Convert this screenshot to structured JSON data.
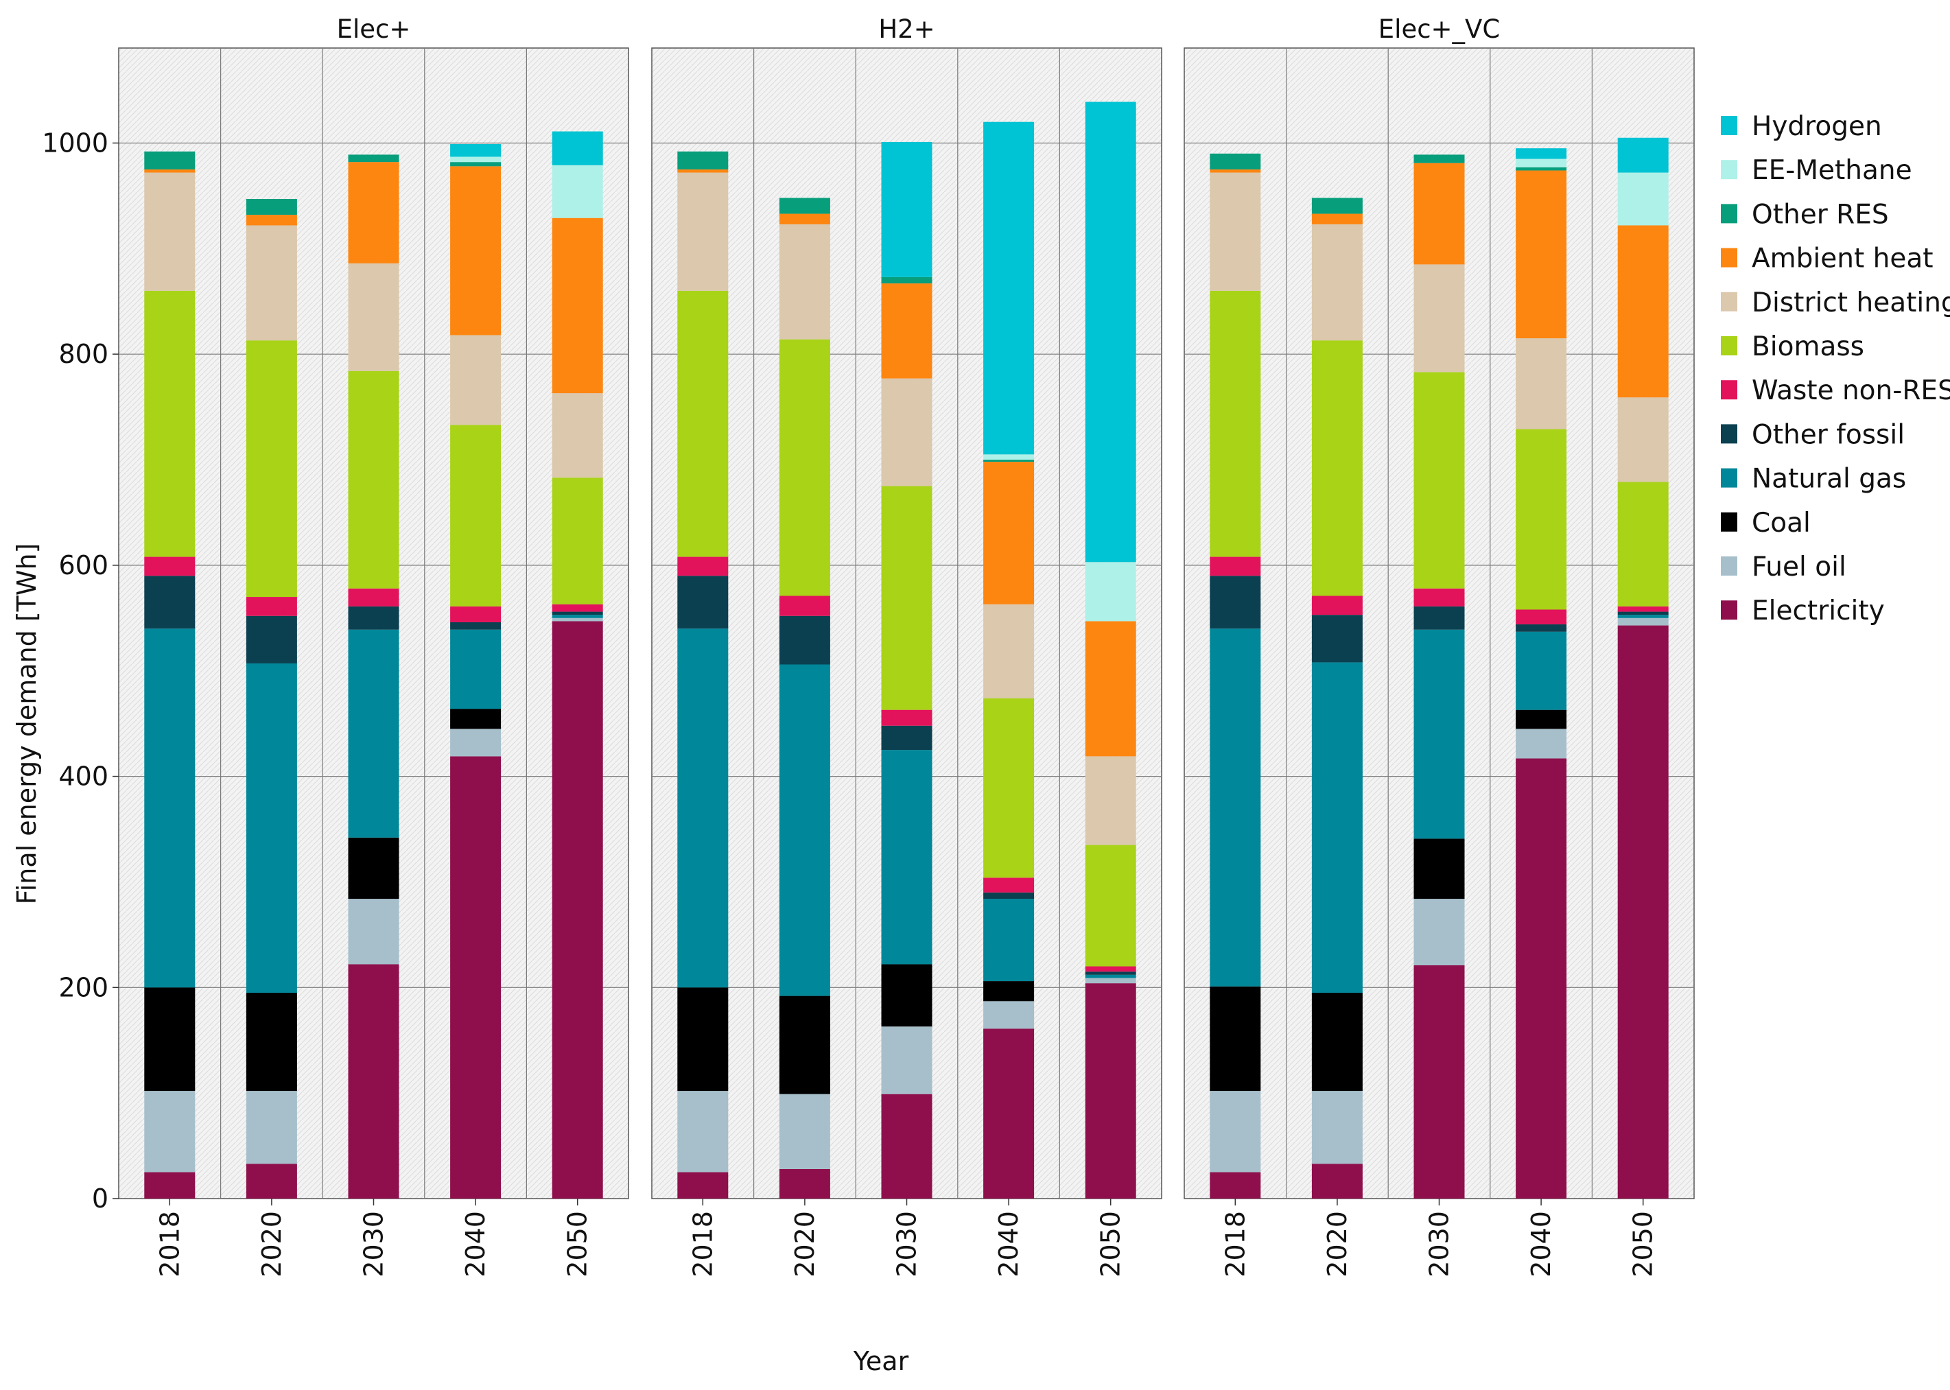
{
  "chart_data": {
    "type": "bar",
    "stacked": true,
    "xlabel": "Year",
    "ylabel": "Final energy demand [TWh]",
    "ylim": [
      0,
      1090
    ],
    "yticks": [
      0,
      200,
      400,
      600,
      800,
      1000
    ],
    "grid": true,
    "legend_position": "right",
    "categories": [
      "2018",
      "2020",
      "2030",
      "2040",
      "2050"
    ],
    "colors": {
      "Electricity": "#8e0f4c",
      "Fuel oil": "#a6bfcb",
      "Coal": "#000000",
      "Natural gas": "#00879a",
      "Other fossil": "#0b4050",
      "Waste non-RES": "#e2135b",
      "Biomass": "#a8d317",
      "District heating": "#dbc8ad",
      "Ambient heat": "#fd8611",
      "Other RES": "#079e7c",
      "EE-Methane": "#aef1e8",
      "Hydrogen": "#00c3d3"
    },
    "legend": [
      "Hydrogen",
      "EE-Methane",
      "Other RES",
      "Ambient heat",
      "District heating",
      "Biomass",
      "Waste non-RES",
      "Other fossil",
      "Natural gas",
      "Coal",
      "Fuel oil",
      "Electricity"
    ],
    "panels": [
      {
        "title": "Elec+",
        "series": [
          {
            "name": "Electricity",
            "values": [
              25,
              33,
              222,
              419,
              547
            ]
          },
          {
            "name": "Fuel oil",
            "values": [
              77,
              69,
              62,
              26,
              3
            ]
          },
          {
            "name": "Coal",
            "values": [
              98,
              93,
              58,
              19,
              0
            ]
          },
          {
            "name": "Natural gas",
            "values": [
              340,
              312,
              197,
              75,
              3
            ]
          },
          {
            "name": "Other fossil",
            "values": [
              50,
              45,
              22,
              7,
              3
            ]
          },
          {
            "name": "Waste non-RES",
            "values": [
              18,
              18,
              17,
              15,
              7
            ]
          },
          {
            "name": "Biomass",
            "values": [
              252,
              243,
              206,
              172,
              120
            ]
          },
          {
            "name": "District heating",
            "values": [
              112,
              109,
              102,
              85,
              80
            ]
          },
          {
            "name": "Ambient heat",
            "values": [
              3,
              10,
              96,
              160,
              166
            ]
          },
          {
            "name": "Other RES",
            "values": [
              17,
              15,
              7,
              4,
              0
            ]
          },
          {
            "name": "EE-Methane",
            "values": [
              0,
              0,
              0,
              5,
              50
            ]
          },
          {
            "name": "Hydrogen",
            "values": [
              0,
              0,
              0,
              12,
              32
            ]
          }
        ]
      },
      {
        "title": "H2+",
        "series": [
          {
            "name": "Electricity",
            "values": [
              25,
              28,
              99,
              161,
              204
            ]
          },
          {
            "name": "Fuel oil",
            "values": [
              77,
              71,
              64,
              26,
              5
            ]
          },
          {
            "name": "Coal",
            "values": [
              98,
              93,
              59,
              19,
              0
            ]
          },
          {
            "name": "Natural gas",
            "values": [
              340,
              314,
              203,
              78,
              3
            ]
          },
          {
            "name": "Other fossil",
            "values": [
              50,
              46,
              23,
              6,
              3
            ]
          },
          {
            "name": "Waste non-RES",
            "values": [
              18,
              19,
              15,
              14,
              5
            ]
          },
          {
            "name": "Biomass",
            "values": [
              252,
              243,
              212,
              170,
              115
            ]
          },
          {
            "name": "District heating",
            "values": [
              112,
              109,
              102,
              89,
              84
            ]
          },
          {
            "name": "Ambient heat",
            "values": [
              3,
              10,
              90,
              135,
              128
            ]
          },
          {
            "name": "Other RES",
            "values": [
              17,
              15,
              6,
              2,
              0
            ]
          },
          {
            "name": "EE-Methane",
            "values": [
              0,
              0,
              0,
              5,
              56
            ]
          },
          {
            "name": "Hydrogen",
            "values": [
              0,
              0,
              128,
              315,
              436
            ]
          }
        ]
      },
      {
        "title": "Elec+_VC",
        "series": [
          {
            "name": "Electricity",
            "values": [
              25,
              33,
              221,
              417,
              543
            ]
          },
          {
            "name": "Fuel oil",
            "values": [
              77,
              69,
              63,
              28,
              7
            ]
          },
          {
            "name": "Coal",
            "values": [
              99,
              93,
              57,
              18,
              0
            ]
          },
          {
            "name": "Natural gas",
            "values": [
              339,
              313,
              198,
              74,
              3
            ]
          },
          {
            "name": "Other fossil",
            "values": [
              50,
              45,
              22,
              7,
              3
            ]
          },
          {
            "name": "Waste non-RES",
            "values": [
              18,
              18,
              17,
              14,
              5
            ]
          },
          {
            "name": "Biomass",
            "values": [
              252,
              242,
              205,
              171,
              118
            ]
          },
          {
            "name": "District heating",
            "values": [
              112,
              110,
              102,
              86,
              80
            ]
          },
          {
            "name": "Ambient heat",
            "values": [
              3,
              10,
              96,
              159,
              163
            ]
          },
          {
            "name": "Other RES",
            "values": [
              15,
              15,
              8,
              3,
              0
            ]
          },
          {
            "name": "EE-Methane",
            "values": [
              0,
              0,
              0,
              8,
              50
            ]
          },
          {
            "name": "Hydrogen",
            "values": [
              0,
              0,
              0,
              10,
              33
            ]
          }
        ]
      }
    ]
  }
}
